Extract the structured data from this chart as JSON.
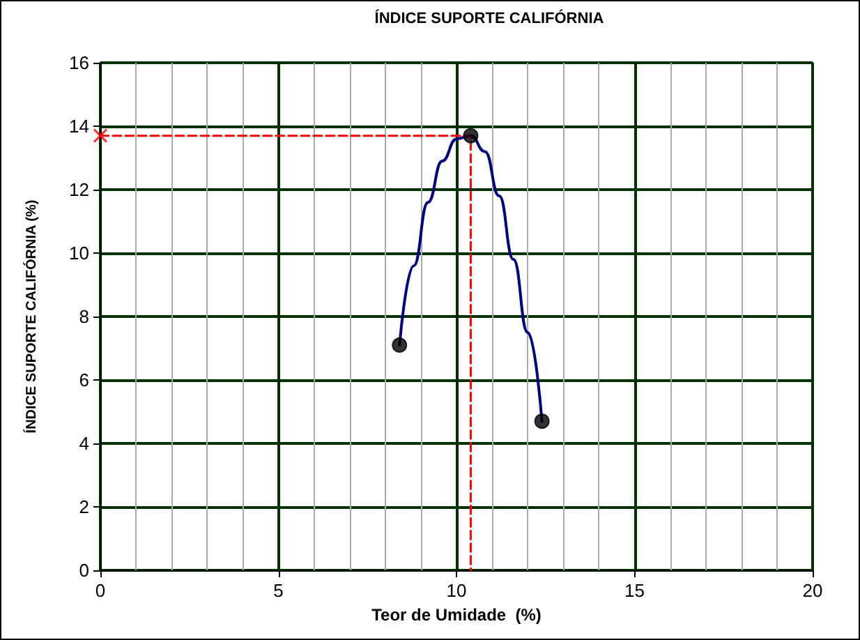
{
  "chart_data": {
    "type": "scatter",
    "title": "ÍNDICE SUPORTE CALIFÓRNIA",
    "xlabel": "Teor de Umidade  (%)",
    "ylabel": "ÍNDICE SUPORTE CALIFÓRNIA (%)",
    "xlim": [
      0,
      20
    ],
    "xticks": [
      0,
      5,
      10,
      15,
      20
    ],
    "ylim": [
      0,
      16
    ],
    "yticks": [
      0,
      2,
      4,
      6,
      8,
      10,
      12,
      14,
      16
    ],
    "grid": true,
    "series": [
      {
        "type": "line",
        "color": "#000080",
        "marker": "none",
        "line_style": "solid",
        "x": [
          8.4,
          8.8,
          9.2,
          9.6,
          10.0,
          10.4,
          10.8,
          11.2,
          11.6,
          12.0,
          12.4
        ],
        "values": [
          7.1,
          9.6,
          11.6,
          12.9,
          13.6,
          13.7,
          13.2,
          11.8,
          9.8,
          7.5,
          4.7
        ]
      },
      {
        "type": "scatter",
        "color": "#000000",
        "marker": "circle",
        "x": [
          8.4,
          10.4,
          12.4
        ],
        "values": [
          7.1,
          13.7,
          4.7
        ]
      },
      {
        "type": "line",
        "color": "#ff0000",
        "marker": "none",
        "line_style": "dashed",
        "x": [
          0,
          10.4,
          10.4
        ],
        "values": [
          13.7,
          13.7,
          0
        ]
      },
      {
        "type": "scatter",
        "color": "#ff0000",
        "marker": "cross",
        "x": [
          0
        ],
        "values": [
          13.7
        ]
      }
    ]
  }
}
